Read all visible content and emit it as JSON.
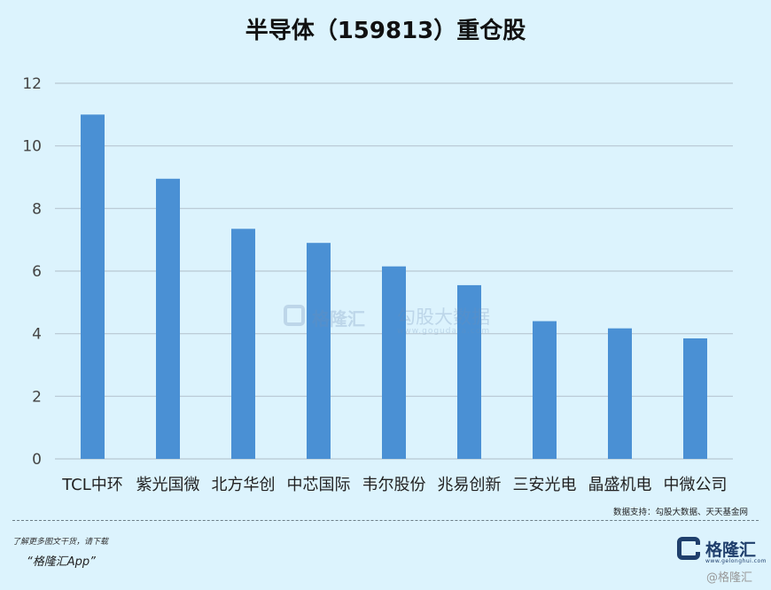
{
  "chart_data": {
    "type": "bar",
    "title": "半导体（159813）重仓股",
    "categories": [
      "TCL中环",
      "紫光国微",
      "北方华创",
      "中芯国际",
      "韦尔股份",
      "兆易创新",
      "三安光电",
      "晶盛机电",
      "中微公司"
    ],
    "values": [
      11.0,
      8.95,
      7.35,
      6.9,
      6.15,
      5.55,
      4.4,
      4.17,
      3.85
    ],
    "ylim": [
      0,
      12
    ],
    "yticks": [
      0,
      2,
      4,
      6,
      8,
      10,
      12
    ],
    "grid": true,
    "bar_color": "#4a90d4",
    "grid_color": "#b7c7d2"
  },
  "watermark": {
    "name": "格隆汇",
    "brand": "勾股大数据",
    "url": "www.gogudata.com"
  },
  "footer": {
    "source": "数据支持：勾股大数据、天天基金网",
    "note": "了解更多图文干货，请下载",
    "app": "“格隆汇App”",
    "logo_name": "格隆汇",
    "logo_url": "www.gelonghui.com",
    "corner_badge": "@格隆汇"
  }
}
